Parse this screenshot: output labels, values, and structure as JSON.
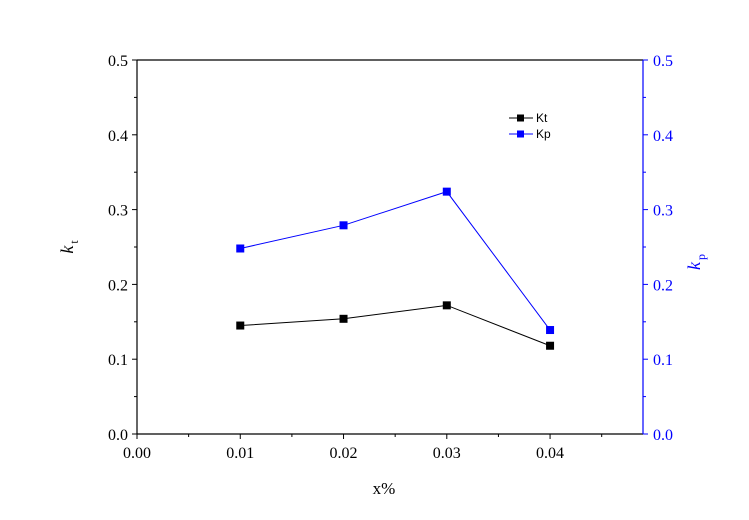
{
  "chart_data": {
    "type": "line",
    "xlabel": "x%",
    "ylabel_left": {
      "base": "k",
      "sub": "t"
    },
    "ylabel_right": {
      "base": "k",
      "sub": "p"
    },
    "xlim": [
      0.0,
      0.049
    ],
    "ylim_left": [
      0.0,
      0.5
    ],
    "ylim_right": [
      0.0,
      0.5
    ],
    "x_ticks": [
      "0.00",
      "0.01",
      "0.02",
      "0.03",
      "0.04"
    ],
    "y_ticks_left": [
      "0.0",
      "0.1",
      "0.2",
      "0.3",
      "0.4",
      "0.5"
    ],
    "y_ticks_right": [
      "0.0",
      "0.1",
      "0.2",
      "0.3",
      "0.4",
      "0.5"
    ],
    "grid": false,
    "legend_position": "top-right",
    "series": [
      {
        "name": "Kt",
        "axis": "left",
        "color": "#000000",
        "marker": "square",
        "x": [
          0.01,
          0.02,
          0.03,
          0.04
        ],
        "y": [
          0.145,
          0.154,
          0.172,
          0.118
        ]
      },
      {
        "name": "Kp",
        "axis": "right",
        "color": "#0000ff",
        "marker": "square",
        "x": [
          0.01,
          0.02,
          0.03,
          0.04
        ],
        "y": [
          0.248,
          0.279,
          0.324,
          0.139
        ]
      }
    ]
  }
}
